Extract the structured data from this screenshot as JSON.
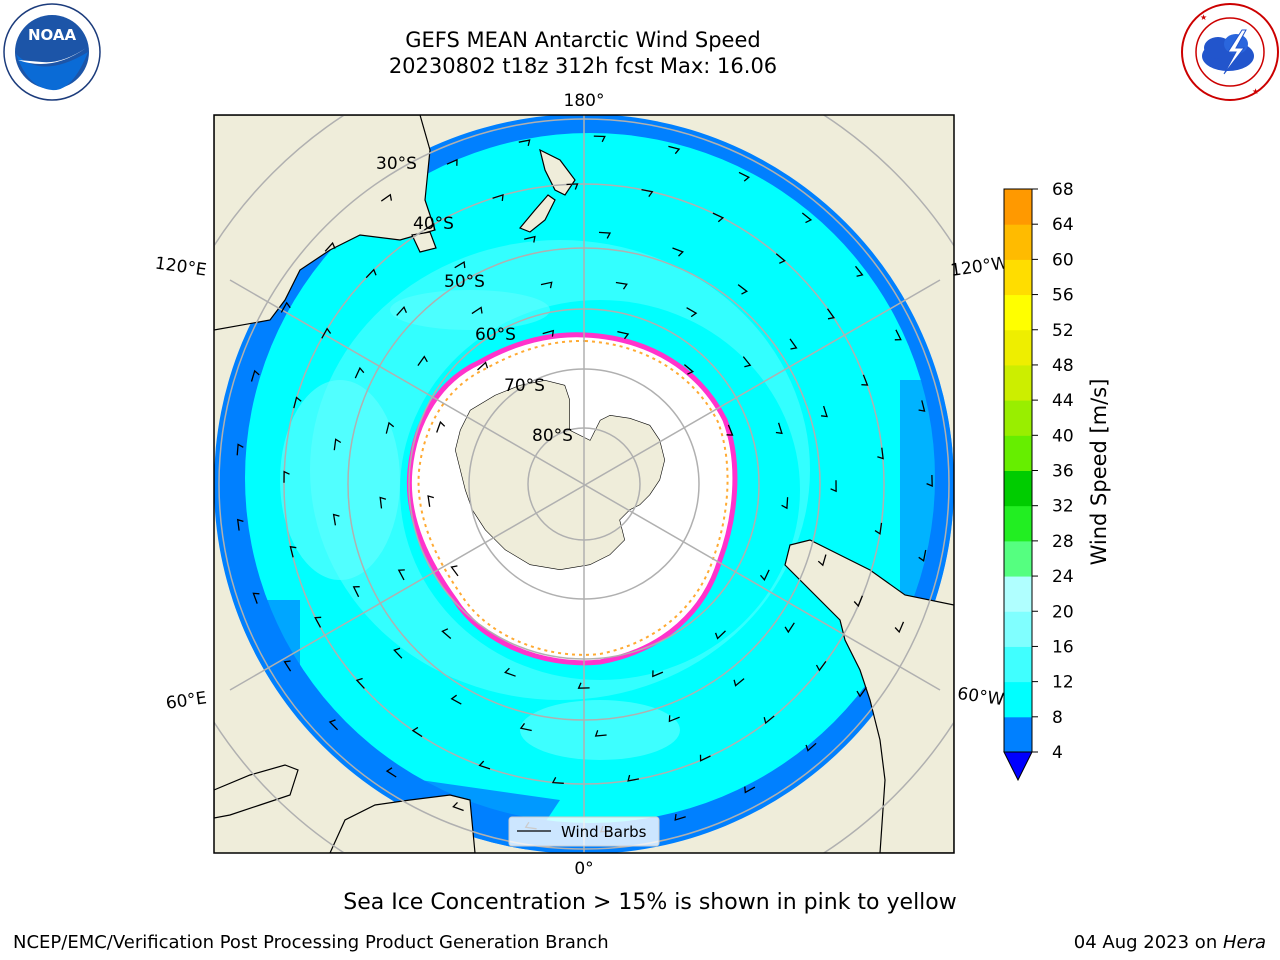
{
  "title": {
    "line1": "GEFS MEAN Antarctic Wind Speed",
    "line2": "20230802 t18z 312h fcst   Max: 16.06"
  },
  "logos": {
    "left": {
      "text": "NOAA",
      "ring_text": "NATIONAL OCEANIC AND ATMOSPHERIC ADMINISTRATION · U.S. DEPARTMENT OF COMMERCE"
    },
    "right": {
      "ring_text": "NATIONAL WEATHER SERVICE"
    }
  },
  "map": {
    "projection": "south-polar-stereographic",
    "longitude_labels": [
      "180°",
      "120°E",
      "120°W",
      "60°E",
      "60°W",
      "0°"
    ],
    "latitude_labels": [
      "30°S",
      "40°S",
      "50°S",
      "60°S",
      "70°S",
      "80°S"
    ],
    "legend_label": "Wind Barbs",
    "colors": {
      "land": "#efedda",
      "ocean_low": "#0080ff",
      "ocean_mid": "#00ffff",
      "ocean_high": "#80ffff",
      "sea_ice_edge": "#ff33cc",
      "sea_ice_inner": "#ffaa33",
      "grid": "#b0b0b0"
    }
  },
  "colorbar": {
    "label": "Wind Speed [m/s]",
    "ticks": [
      "4",
      "8",
      "12",
      "16",
      "20",
      "24",
      "28",
      "32",
      "36",
      "40",
      "44",
      "48",
      "52",
      "56",
      "60",
      "64",
      "68"
    ],
    "colors": [
      "#0080ff",
      "#00ffff",
      "#40ffff",
      "#80ffff",
      "#b0ffff",
      "#55ff80",
      "#22ee22",
      "#00cc00",
      "#66ee00",
      "#99ee00",
      "#ccee00",
      "#eeee00",
      "#ffff00",
      "#ffdd00",
      "#ffbb00",
      "#ff9900",
      "#ff6600",
      "#ff3300",
      "#ff0000"
    ],
    "extend_min_color": "#0000ff"
  },
  "subtitle": "Sea Ice Concentration > 15% is shown in pink to yellow",
  "footer": {
    "left": "NCEP/EMC/Verification Post Processing Product Generation Branch",
    "right_date": "04 Aug 2023 on ",
    "right_host": "Hera"
  }
}
